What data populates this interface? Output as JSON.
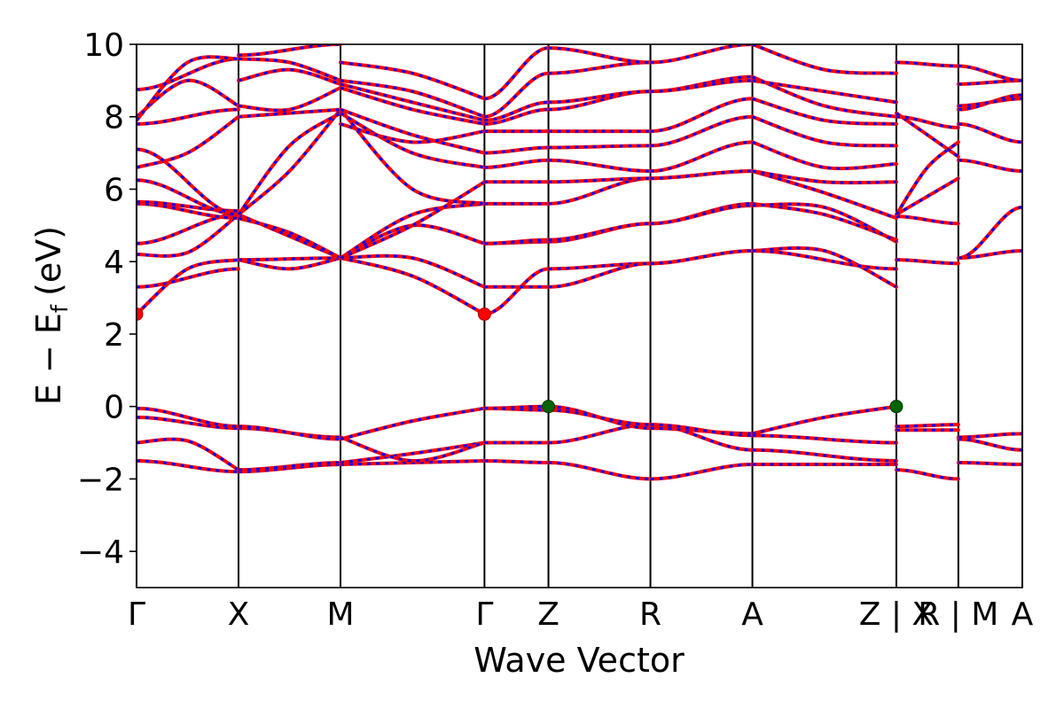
{
  "chart_data": {
    "type": "line",
    "title": "",
    "xlabel": "Wave Vector",
    "ylabel": "E − E",
    "ylabel_subscript": "f",
    "ylabel_unit": "(eV)",
    "ylim": [
      -5,
      10
    ],
    "yticks": [
      -4,
      -2,
      0,
      2,
      4,
      6,
      8,
      10
    ],
    "ytick_labels": [
      "−4",
      "−2",
      "0",
      "2",
      "4",
      "6",
      "8",
      "10"
    ],
    "xlim": [
      0,
      4.43
    ],
    "kpoints": [
      {
        "label": "Γ",
        "x": 0.0
      },
      {
        "label": "X",
        "x": 0.51
      },
      {
        "label": "M",
        "x": 1.02
      },
      {
        "label": "Γ",
        "x": 1.74
      },
      {
        "label": "Z",
        "x": 2.06
      },
      {
        "label": "R",
        "x": 2.57
      },
      {
        "label": "A",
        "x": 3.08
      },
      {
        "label": "Z | X",
        "x": 3.8
      },
      {
        "label": "R | M",
        "x": 4.11
      },
      {
        "label": "A",
        "x": 4.43
      }
    ],
    "colors": {
      "spin_up": "#ff0000",
      "spin_down": "#0000ff",
      "vbm": "#006400",
      "cbm": "#ff0000"
    },
    "markers": [
      {
        "name": "cbm",
        "x": 0.0,
        "y": 2.55,
        "color": "#ff0000"
      },
      {
        "name": "cbm",
        "x": 1.74,
        "y": 2.55,
        "color": "#ff0000"
      },
      {
        "name": "vbm",
        "x": 2.06,
        "y": 0.0,
        "color": "#006400"
      },
      {
        "name": "vbm",
        "x": 3.8,
        "y": 0.0,
        "color": "#006400"
      }
    ],
    "segments": [
      {
        "x0": 0.0,
        "x1": 0.51,
        "bands": [
          [
            -1.5,
            -1.8
          ],
          [
            -1.0,
            -0.95,
            -1.75
          ],
          [
            -0.3,
            -0.6
          ],
          [
            -0.05,
            -0.55
          ],
          [
            2.55,
            3.8,
            4.05
          ],
          [
            3.3,
            3.8
          ],
          [
            4.2,
            4.25,
            5.3
          ],
          [
            4.5,
            5.3
          ],
          [
            5.6,
            5.2
          ],
          [
            5.65,
            5.4
          ],
          [
            6.25,
            5.3
          ],
          [
            6.6,
            7.0,
            8.0
          ],
          [
            7.1,
            5.3
          ],
          [
            7.8,
            8.2
          ],
          [
            8.0,
            9.0,
            8.3
          ],
          [
            8.75,
            9.6
          ],
          [
            7.9,
            9.5,
            9.6
          ]
        ]
      },
      {
        "x0": 0.51,
        "x1": 1.02,
        "bands": [
          [
            -1.8,
            -1.6
          ],
          [
            -1.75,
            -1.55
          ],
          [
            -0.6,
            -0.85
          ],
          [
            -0.55,
            -0.9
          ],
          [
            4.05,
            3.8,
            4.1
          ],
          [
            4.05,
            4.1
          ],
          [
            5.3,
            4.7,
            4.1
          ],
          [
            5.2,
            4.8,
            4.1
          ],
          [
            5.3,
            6.5,
            8.2
          ],
          [
            5.3,
            7.2,
            8.1
          ],
          [
            8.0,
            8.1,
            8.2
          ],
          [
            8.3,
            8.2,
            8.8
          ],
          [
            9.0,
            9.3,
            8.9
          ],
          [
            9.6,
            9.5,
            9.0
          ],
          [
            9.7,
            10.0
          ]
        ]
      },
      {
        "x0": 1.02,
        "x1": 1.74,
        "bands": [
          [
            -1.6,
            -1.55,
            -1.5
          ],
          [
            -1.55,
            -1.3,
            -1.0
          ],
          [
            -0.85,
            -1.5,
            -1.0
          ],
          [
            -0.9,
            -0.4,
            -0.05
          ],
          [
            4.1,
            4.1,
            3.3
          ],
          [
            4.1,
            3.6,
            2.55
          ],
          [
            4.1,
            5.0,
            4.5
          ],
          [
            4.1,
            5.3,
            5.6
          ],
          [
            4.1,
            5.0,
            6.2
          ],
          [
            8.2,
            6.0,
            5.6
          ],
          [
            8.1,
            7.0,
            6.6
          ],
          [
            8.2,
            7.5,
            7.0
          ],
          [
            7.8,
            7.3,
            7.6
          ],
          [
            8.8,
            8.2,
            7.8
          ],
          [
            8.9,
            8.4,
            7.9
          ],
          [
            9.0,
            8.7,
            8.0
          ],
          [
            9.5,
            9.2,
            8.5
          ]
        ]
      },
      {
        "x0": 1.74,
        "x1": 2.06,
        "bands": [
          [
            -1.5,
            -1.55
          ],
          [
            -1.0,
            -1.0
          ],
          [
            -0.05,
            0.0
          ],
          [
            -0.05,
            -0.1
          ],
          [
            2.55,
            3.8
          ],
          [
            3.3,
            3.3
          ],
          [
            4.5,
            4.55
          ],
          [
            4.5,
            4.6
          ],
          [
            5.6,
            5.6
          ],
          [
            6.2,
            6.2
          ],
          [
            6.6,
            6.8
          ],
          [
            7.0,
            7.15
          ],
          [
            7.6,
            7.6
          ],
          [
            7.8,
            8.2
          ],
          [
            7.9,
            8.4
          ],
          [
            8.0,
            9.2
          ],
          [
            8.5,
            9.9
          ]
        ]
      },
      {
        "x0": 2.06,
        "x1": 2.57,
        "bands": [
          [
            -1.55,
            -2.0
          ],
          [
            -1.0,
            -0.5
          ],
          [
            0.0,
            -0.6
          ],
          [
            -0.1,
            -0.5
          ],
          [
            3.8,
            3.95
          ],
          [
            3.3,
            3.95
          ],
          [
            4.55,
            5.05
          ],
          [
            4.6,
            5.05
          ],
          [
            5.6,
            6.3
          ],
          [
            6.2,
            6.3
          ],
          [
            6.8,
            6.5
          ],
          [
            7.15,
            7.2
          ],
          [
            7.6,
            7.6
          ],
          [
            8.2,
            8.7
          ],
          [
            8.4,
            8.7
          ],
          [
            9.2,
            9.5
          ],
          [
            9.9,
            9.5
          ]
        ]
      },
      {
        "x0": 2.57,
        "x1": 3.08,
        "bands": [
          [
            -2.0,
            -1.6
          ],
          [
            -0.5,
            -1.2
          ],
          [
            -0.6,
            -0.75
          ],
          [
            -0.5,
            -0.8
          ],
          [
            3.95,
            4.3
          ],
          [
            3.95,
            4.3
          ],
          [
            5.05,
            5.6
          ],
          [
            5.05,
            5.55
          ],
          [
            6.3,
            6.5
          ],
          [
            6.3,
            6.5
          ],
          [
            6.5,
            7.3
          ],
          [
            7.2,
            8.0
          ],
          [
            7.6,
            8.5
          ],
          [
            8.7,
            9.1
          ],
          [
            8.7,
            9.0
          ],
          [
            9.5,
            10.0
          ]
        ]
      },
      {
        "x0": 3.08,
        "x1": 3.8,
        "bands": [
          [
            -1.6,
            -1.6
          ],
          [
            -1.2,
            -1.5
          ],
          [
            -0.75,
            -0.3,
            0.0
          ],
          [
            -0.8,
            -1.0
          ],
          [
            4.3,
            4.3,
            3.3
          ],
          [
            4.3,
            3.8
          ],
          [
            5.6,
            5.3,
            4.6
          ],
          [
            5.55,
            5.5,
            4.55
          ],
          [
            6.5,
            5.9,
            5.2
          ],
          [
            6.5,
            6.2,
            6.2
          ],
          [
            7.3,
            6.6,
            6.7
          ],
          [
            8.0,
            7.3,
            7.2
          ],
          [
            8.5,
            7.9,
            7.8
          ],
          [
            9.1,
            8.3,
            8.0
          ],
          [
            9.0,
            8.7,
            8.4
          ],
          [
            10.0,
            9.3,
            9.2
          ]
        ]
      },
      {
        "x0": 3.8,
        "x1": 4.11,
        "bands": [
          [
            -1.75,
            -2.0
          ],
          [
            -0.65,
            -0.65
          ],
          [
            -0.55,
            -0.5
          ],
          [
            4.05,
            3.95
          ],
          [
            5.25,
            5.05
          ],
          [
            5.3,
            5.8,
            6.3
          ],
          [
            5.3,
            6.6,
            7.3
          ],
          [
            8.1,
            7.5,
            6.9
          ],
          [
            8.0,
            7.7
          ],
          [
            9.5,
            9.4
          ]
        ]
      },
      {
        "x0": 4.11,
        "x1": 4.43,
        "bands": [
          [
            -1.55,
            -1.6
          ],
          [
            -0.9,
            -1.2
          ],
          [
            -0.85,
            -0.75
          ],
          [
            4.1,
            4.3
          ],
          [
            4.1,
            5.5
          ],
          [
            6.8,
            6.5
          ],
          [
            7.8,
            7.3
          ],
          [
            8.2,
            8.6
          ],
          [
            8.3,
            8.5
          ],
          [
            8.9,
            9.0
          ],
          [
            9.4,
            9.0
          ]
        ]
      }
    ]
  }
}
